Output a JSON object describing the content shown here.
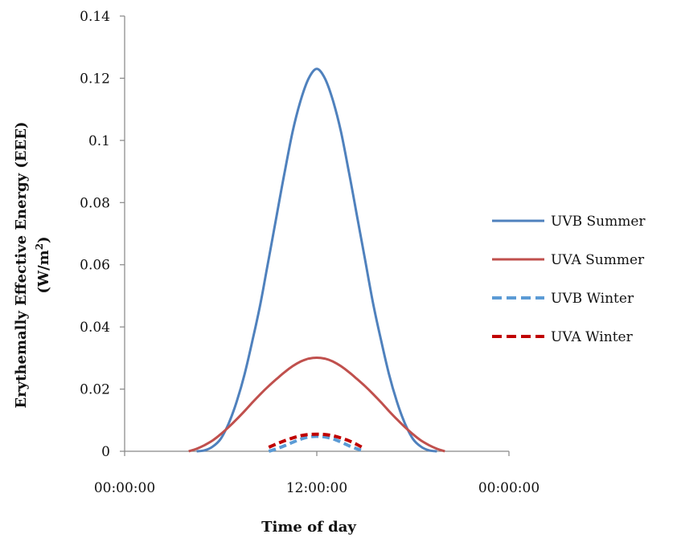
{
  "chart_data": {
    "type": "line",
    "xlabel": "Time of day",
    "ylabel_line1": "Erythemally Effective Energy (EEE)",
    "ylabel_line2_prefix": "(W/m",
    "ylabel_line2_sup": "2",
    "ylabel_line2_suffix": ")",
    "xlim": [
      0,
      24
    ],
    "ylim": [
      0,
      0.14
    ],
    "yticks": [
      0,
      0.02,
      0.04,
      0.06,
      0.08,
      0.1,
      0.12,
      0.14
    ],
    "ytick_labels": [
      "0",
      "0.02",
      "0.04",
      "0.06",
      "0.08",
      "0.1",
      "0.12",
      "0.14"
    ],
    "xticks": [
      0,
      12,
      24
    ],
    "xtick_labels": [
      "00:00:00",
      "12:00:00",
      "00:00:00"
    ],
    "legend_position": "right",
    "series": [
      {
        "name": "UVB Summer",
        "color": "#4f81bd",
        "dash": "solid",
        "x": [
          4.5,
          5,
          5.5,
          6,
          6.5,
          7,
          7.5,
          8,
          8.5,
          9,
          9.5,
          10,
          10.5,
          11,
          11.5,
          12,
          12.5,
          13,
          13.5,
          14,
          14.5,
          15,
          15.5,
          16,
          16.5,
          17,
          17.5,
          18,
          18.5,
          19,
          19.5
        ],
        "values": [
          0,
          0.0003,
          0.0015,
          0.004,
          0.009,
          0.016,
          0.025,
          0.036,
          0.048,
          0.062,
          0.076,
          0.09,
          0.103,
          0.113,
          0.12,
          0.123,
          0.12,
          0.113,
          0.103,
          0.09,
          0.076,
          0.062,
          0.048,
          0.036,
          0.025,
          0.016,
          0.009,
          0.004,
          0.0015,
          0.0003,
          0
        ]
      },
      {
        "name": "UVA Summer",
        "color": "#c0504d",
        "dash": "solid",
        "x": [
          4,
          4.5,
          5,
          5.5,
          6,
          6.5,
          7,
          7.5,
          8,
          8.5,
          9,
          9.5,
          10,
          10.5,
          11,
          11.5,
          12,
          12.5,
          13,
          13.5,
          14,
          14.5,
          15,
          15.5,
          16,
          16.5,
          17,
          17.5,
          18,
          18.5,
          19,
          19.5,
          20
        ],
        "values": [
          0,
          0.0008,
          0.002,
          0.0035,
          0.0055,
          0.0078,
          0.0103,
          0.013,
          0.0158,
          0.0185,
          0.021,
          0.0233,
          0.0255,
          0.0274,
          0.0289,
          0.0298,
          0.0301,
          0.0298,
          0.0289,
          0.0274,
          0.0255,
          0.0233,
          0.021,
          0.0185,
          0.0158,
          0.013,
          0.0103,
          0.0078,
          0.0055,
          0.0035,
          0.002,
          0.0008,
          0
        ]
      },
      {
        "name": "UVB Winter",
        "color": "#5b9bd5",
        "dash": "dashed",
        "x": [
          9,
          9.5,
          10,
          10.5,
          11,
          11.5,
          12,
          12.5,
          13,
          13.5,
          14,
          14.5,
          15
        ],
        "values": [
          0,
          0.0008,
          0.0018,
          0.0029,
          0.0039,
          0.0046,
          0.0048,
          0.0046,
          0.004,
          0.003,
          0.0018,
          0.0008,
          0
        ]
      },
      {
        "name": "UVA Winter",
        "color": "#c00000",
        "dash": "dashed",
        "x": [
          9,
          9.5,
          10,
          10.5,
          11,
          11.5,
          12,
          12.5,
          13,
          13.5,
          14,
          14.5,
          15
        ],
        "values": [
          0.0013,
          0.0024,
          0.0034,
          0.0043,
          0.005,
          0.0054,
          0.0055,
          0.0054,
          0.005,
          0.0043,
          0.0034,
          0.0022,
          0.0008
        ]
      }
    ]
  }
}
